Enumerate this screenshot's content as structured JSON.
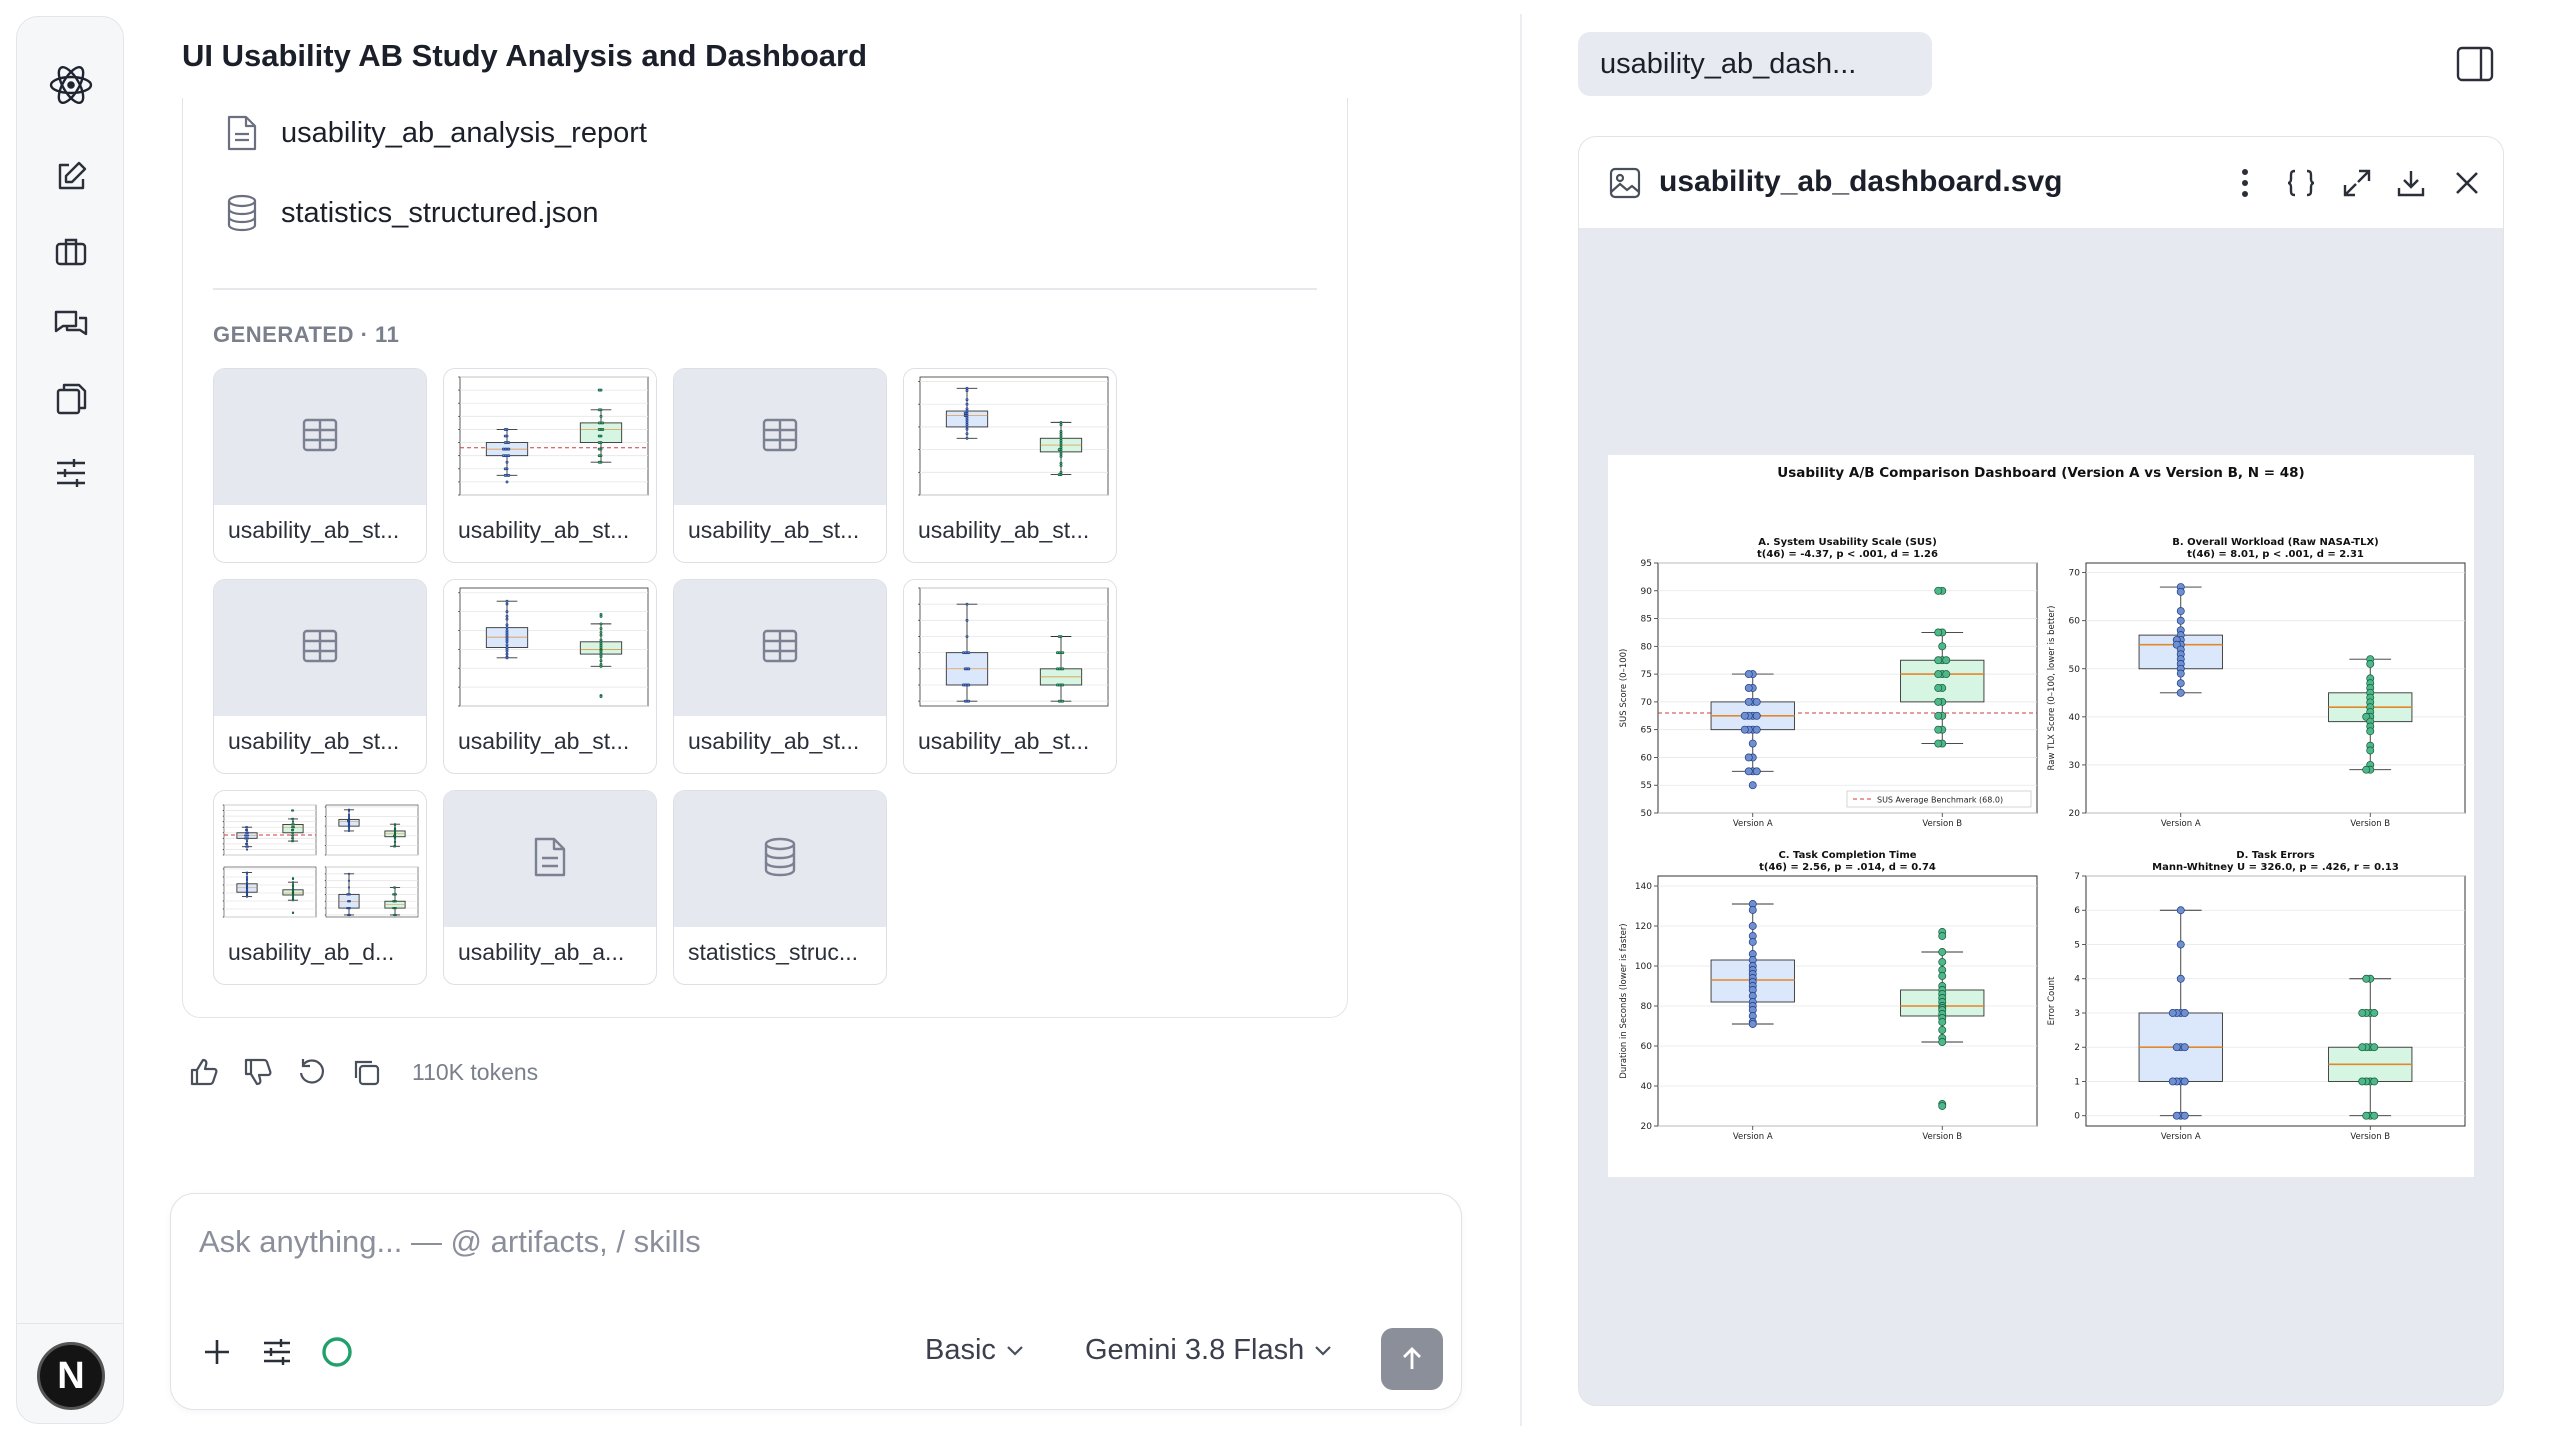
{
  "conversation": {
    "title": "UI Usability AB Study Analysis and Dashboard"
  },
  "files": [
    {
      "label": "usability_ab_analysis_report",
      "icon": "document-icon"
    },
    {
      "label": "statistics_structured.json",
      "icon": "database-icon"
    }
  ],
  "generated": {
    "label": "GENERATED · 11",
    "tiles": [
      {
        "caption": "usability_ab_st...",
        "kind": "table"
      },
      {
        "caption": "usability_ab_st...",
        "kind": "image"
      },
      {
        "caption": "usability_ab_st...",
        "kind": "table"
      },
      {
        "caption": "usability_ab_st...",
        "kind": "image"
      },
      {
        "caption": "usability_ab_st...",
        "kind": "table"
      },
      {
        "caption": "usability_ab_st...",
        "kind": "image"
      },
      {
        "caption": "usability_ab_st...",
        "kind": "table"
      },
      {
        "caption": "usability_ab_st...",
        "kind": "image"
      },
      {
        "caption": "usability_ab_d...",
        "kind": "dashboard"
      },
      {
        "caption": "usability_ab_a...",
        "kind": "document"
      },
      {
        "caption": "statistics_struc...",
        "kind": "database"
      }
    ]
  },
  "actions": {
    "tokens": "110K tokens"
  },
  "composer": {
    "placeholder": "Ask anything... — @ artifacts, / skills",
    "mode": "Basic",
    "model": "Gemini 3.8 Flash"
  },
  "panel": {
    "tab_label": "usability_ab_dash...",
    "file_name": "usability_ab_dashboard.svg"
  },
  "colors": {
    "accent_green": "#22a06b",
    "version_a": "#dbe8fb",
    "version_b": "#d6f5e3",
    "median": "#e3872d"
  },
  "chart_data": [
    {
      "type": "box",
      "dashboard_title": "Usability A/B Comparison Dashboard (Version A vs Version B, N = 48)",
      "title": "A. System Usability Scale (SUS)",
      "subtitle": "t(46) = -4.37, p < .001, d = 1.26",
      "ylabel": "SUS Score (0–100)",
      "categories": [
        "Version A",
        "Version B"
      ],
      "ylim": [
        50,
        95
      ],
      "yticks": [
        50,
        55,
        60,
        65,
        70,
        75,
        80,
        85,
        90,
        95
      ],
      "benchmark": {
        "value": 68,
        "label": "SUS Average Benchmark (68.0)"
      },
      "boxes": [
        {
          "min": 57.5,
          "q1": 65,
          "median": 67.5,
          "q3": 70,
          "max": 75
        },
        {
          "min": 62.5,
          "q1": 70,
          "median": 75,
          "q3": 77.5,
          "max": 82.5
        }
      ],
      "points": [
        [
          75,
          75,
          72.5,
          72.5,
          70,
          70,
          70,
          67.5,
          67.5,
          67.5,
          67.5,
          65,
          65,
          65,
          65,
          62.5,
          60,
          60,
          57.5,
          57.5,
          57.5,
          55
        ],
        [
          90,
          90,
          82.5,
          82.5,
          80,
          77.5,
          77.5,
          77.5,
          75,
          75,
          75,
          72.5,
          72.5,
          70,
          70,
          67.5,
          67.5,
          65,
          65,
          62.5,
          62.5
        ]
      ]
    },
    {
      "type": "box",
      "title": "B. Overall Workload (Raw NASA-TLX)",
      "subtitle": "t(46) = 8.01, p < .001, d = 2.31",
      "ylabel": "Raw TLX Score (0–100, lower is better)",
      "categories": [
        "Version A",
        "Version B"
      ],
      "ylim": [
        20,
        72
      ],
      "yticks": [
        20,
        30,
        40,
        50,
        60,
        70
      ],
      "boxes": [
        {
          "min": 45,
          "q1": 50,
          "median": 55,
          "q3": 57,
          "max": 67
        },
        {
          "min": 29,
          "q1": 39,
          "median": 42,
          "q3": 45,
          "max": 52
        }
      ],
      "points": [
        [
          67,
          66,
          62,
          60,
          58,
          57,
          56,
          56,
          55,
          55,
          54,
          53,
          52,
          51,
          50,
          49,
          47,
          45
        ],
        [
          52,
          51,
          48,
          47,
          46,
          45,
          44,
          43,
          42,
          41,
          40,
          40,
          39,
          38,
          37,
          34,
          33,
          30,
          29,
          29
        ]
      ]
    },
    {
      "type": "box",
      "title": "C. Task Completion Time",
      "subtitle": "t(46) = 2.56, p = .014, d = 0.74",
      "ylabel": "Duration in Seconds (lower is faster)",
      "categories": [
        "Version A",
        "Version B"
      ],
      "ylim": [
        20,
        145
      ],
      "yticks": [
        20,
        40,
        60,
        80,
        100,
        120,
        140
      ],
      "boxes": [
        {
          "min": 71,
          "q1": 82,
          "median": 93,
          "q3": 103,
          "max": 131
        },
        {
          "min": 62,
          "q1": 75,
          "median": 80,
          "q3": 88,
          "max": 107
        }
      ],
      "points": [
        [
          131,
          128,
          120,
          115,
          112,
          106,
          103,
          100,
          98,
          96,
          94,
          92,
          90,
          88,
          85,
          82,
          80,
          78,
          75,
          72,
          71
        ],
        [
          117,
          115,
          107,
          102,
          98,
          95,
          90,
          88,
          86,
          84,
          82,
          80,
          79,
          78,
          76,
          74,
          72,
          68,
          64,
          62,
          31,
          30
        ]
      ]
    },
    {
      "type": "box",
      "title": "D. Task Errors",
      "subtitle": "Mann-Whitney U = 326.0, p = .426, r = 0.13",
      "ylabel": "Error Count",
      "categories": [
        "Version A",
        "Version B"
      ],
      "ylim": [
        -0.3,
        7
      ],
      "yticks": [
        0,
        1,
        2,
        3,
        4,
        5,
        6,
        7
      ],
      "boxes": [
        {
          "min": 0,
          "q1": 1,
          "median": 2,
          "q3": 3,
          "max": 6
        },
        {
          "min": 0,
          "q1": 1,
          "median": 1.5,
          "q3": 2,
          "max": 4
        }
      ],
      "points": [
        [
          6,
          5,
          4,
          3,
          3,
          3,
          3,
          2,
          2,
          2,
          1,
          1,
          1,
          1,
          0,
          0,
          0
        ],
        [
          4,
          4,
          3,
          3,
          3,
          3,
          2,
          2,
          2,
          2,
          1,
          1,
          1,
          1,
          0,
          0,
          0
        ]
      ]
    }
  ]
}
